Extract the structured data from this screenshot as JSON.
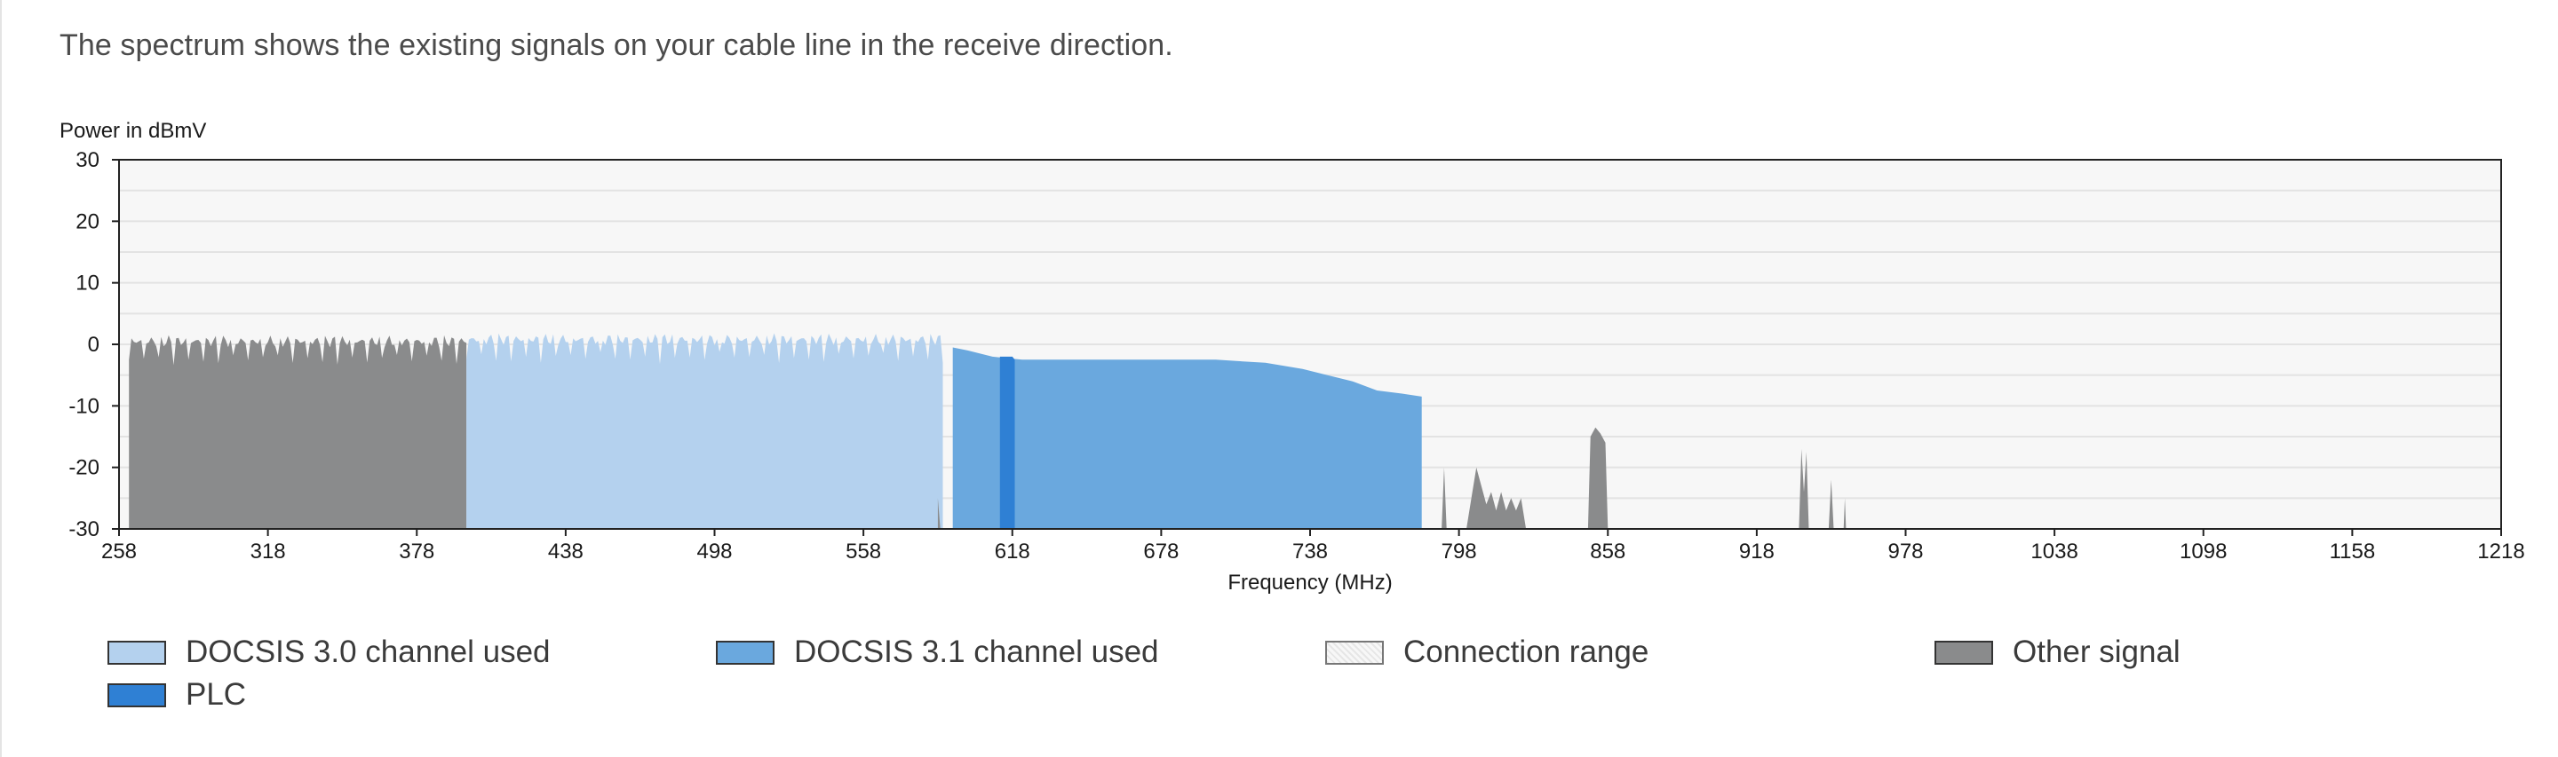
{
  "intro_text": "The spectrum shows the existing signals on your cable line in the receive direction.",
  "chart_data": {
    "type": "area",
    "ylabel": "Power in dBmV",
    "xlabel": "Frequency (MHz)",
    "xlim": [
      258,
      1218
    ],
    "ylim": [
      -30,
      30
    ],
    "xticks": [
      258,
      318,
      378,
      438,
      498,
      558,
      618,
      678,
      738,
      798,
      858,
      918,
      978,
      1038,
      1098,
      1158,
      1218
    ],
    "yticks": [
      30,
      20,
      10,
      0,
      -10,
      -20,
      -30
    ],
    "grid": true,
    "legend_position": "bottom",
    "colors": {
      "plot_bg": "#f7f7f7",
      "grid": "#e3e3e3",
      "docsis30": "#b4d1ee",
      "docsis31": "#6aa8de",
      "plc": "#2f80d4",
      "connection_range": "#ececec",
      "other": "#8a8b8c"
    },
    "series": [
      {
        "name": "Other signal",
        "key": "other",
        "kind": "bands",
        "bands": [
          [
            262,
            398,
            0.5
          ]
        ]
      },
      {
        "name": "DOCSIS 3.0 channel used",
        "key": "docsis30",
        "kind": "bands",
        "bands": [
          [
            398,
            590,
            0.8
          ]
        ]
      },
      {
        "name": "DOCSIS 3.1 channel used",
        "key": "docsis31",
        "kind": "points",
        "points": [
          [
            594,
            -30
          ],
          [
            594,
            -0.5
          ],
          [
            600,
            -1
          ],
          [
            610,
            -2
          ],
          [
            622,
            -2.5
          ],
          [
            640,
            -2.5
          ],
          [
            660,
            -2.5
          ],
          [
            680,
            -2.5
          ],
          [
            700,
            -2.5
          ],
          [
            720,
            -3
          ],
          [
            735,
            -4
          ],
          [
            745,
            -5
          ],
          [
            755,
            -6
          ],
          [
            765,
            -7.5
          ],
          [
            775,
            -8
          ],
          [
            783,
            -8.5
          ],
          [
            783,
            -30
          ]
        ]
      },
      {
        "name": "PLC",
        "key": "plc",
        "kind": "points",
        "points": [
          [
            613,
            -30
          ],
          [
            613,
            -2
          ],
          [
            618,
            -2
          ],
          [
            619,
            -2.5
          ],
          [
            619,
            -30
          ]
        ]
      },
      {
        "name": "Other signal",
        "key": "other",
        "kind": "points",
        "points": [
          [
            588,
            -30
          ],
          [
            588,
            -25
          ],
          [
            589,
            -30
          ]
        ]
      },
      {
        "name": "Other signal",
        "key": "other",
        "kind": "points",
        "points": [
          [
            791,
            -30
          ],
          [
            792,
            -20
          ],
          [
            793,
            -30
          ]
        ]
      },
      {
        "name": "Other signal",
        "key": "other",
        "kind": "points",
        "points": [
          [
            801,
            -30
          ],
          [
            803,
            -25
          ],
          [
            805,
            -20
          ],
          [
            807,
            -23
          ],
          [
            809,
            -26
          ],
          [
            811,
            -24
          ],
          [
            813,
            -27
          ],
          [
            815,
            -24
          ],
          [
            817,
            -27
          ],
          [
            819,
            -25
          ],
          [
            821,
            -27
          ],
          [
            823,
            -25
          ],
          [
            825,
            -30
          ]
        ]
      },
      {
        "name": "Other signal",
        "key": "other",
        "kind": "points",
        "points": [
          [
            850,
            -30
          ],
          [
            851,
            -15
          ],
          [
            853,
            -13.5
          ],
          [
            855,
            -14.5
          ],
          [
            857,
            -16
          ],
          [
            858,
            -30
          ]
        ]
      },
      {
        "name": "Other signal",
        "key": "other",
        "kind": "points",
        "points": [
          [
            935,
            -30
          ],
          [
            936,
            -17
          ],
          [
            937,
            -24
          ],
          [
            938,
            -17.5
          ],
          [
            939,
            -30
          ]
        ]
      },
      {
        "name": "Other signal",
        "key": "other",
        "kind": "points",
        "points": [
          [
            947,
            -30
          ],
          [
            948,
            -22
          ],
          [
            949,
            -30
          ]
        ]
      },
      {
        "name": "Other signal",
        "key": "other",
        "kind": "points",
        "points": [
          [
            953,
            -30
          ],
          [
            953.5,
            -25
          ],
          [
            954,
            -30
          ]
        ]
      }
    ]
  },
  "legend": {
    "items": [
      {
        "label": "DOCSIS 3.0 channel used",
        "color": "#b4d1ee"
      },
      {
        "label": "DOCSIS 3.1 channel used",
        "color": "#6aa8de"
      },
      {
        "label": "Connection range",
        "color": "#ececec"
      },
      {
        "label": "Other signal",
        "color": "#8a8b8c"
      },
      {
        "label": "PLC",
        "color": "#2f80d4"
      }
    ]
  }
}
